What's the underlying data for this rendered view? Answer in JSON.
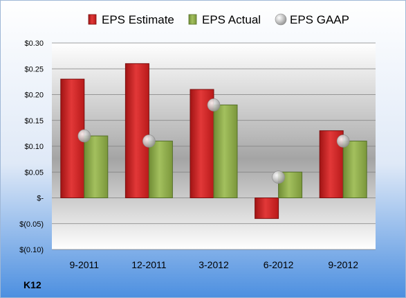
{
  "chart_data": {
    "type": "bar",
    "company": "K12",
    "categories": [
      "9-2011",
      "12-2011",
      "3-2012",
      "6-2012",
      "9-2012"
    ],
    "series": [
      {
        "name": "EPS Estimate",
        "kind": "bar",
        "color": "#d42a2a",
        "values": [
          0.23,
          0.26,
          0.21,
          -0.04,
          0.13
        ]
      },
      {
        "name": "EPS Actual",
        "kind": "bar",
        "color": "#8fae4a",
        "values": [
          0.12,
          0.11,
          0.18,
          0.05,
          0.11
        ]
      },
      {
        "name": "EPS GAAP",
        "kind": "marker",
        "color": "#b8b8b8",
        "values": [
          0.12,
          0.11,
          0.18,
          0.04,
          0.11
        ]
      }
    ],
    "ylim": [
      -0.1,
      0.3
    ],
    "yticks": [
      0.3,
      0.25,
      0.2,
      0.15,
      0.1,
      0.05,
      0,
      -0.05,
      -0.1
    ],
    "ytick_labels": [
      "$0.30",
      "$0.25",
      "$0.20",
      "$0.15",
      "$0.10",
      "$0.05",
      "$-",
      "$(0.05)",
      "$(0.10)"
    ],
    "grid": true,
    "legend_position": "top"
  }
}
